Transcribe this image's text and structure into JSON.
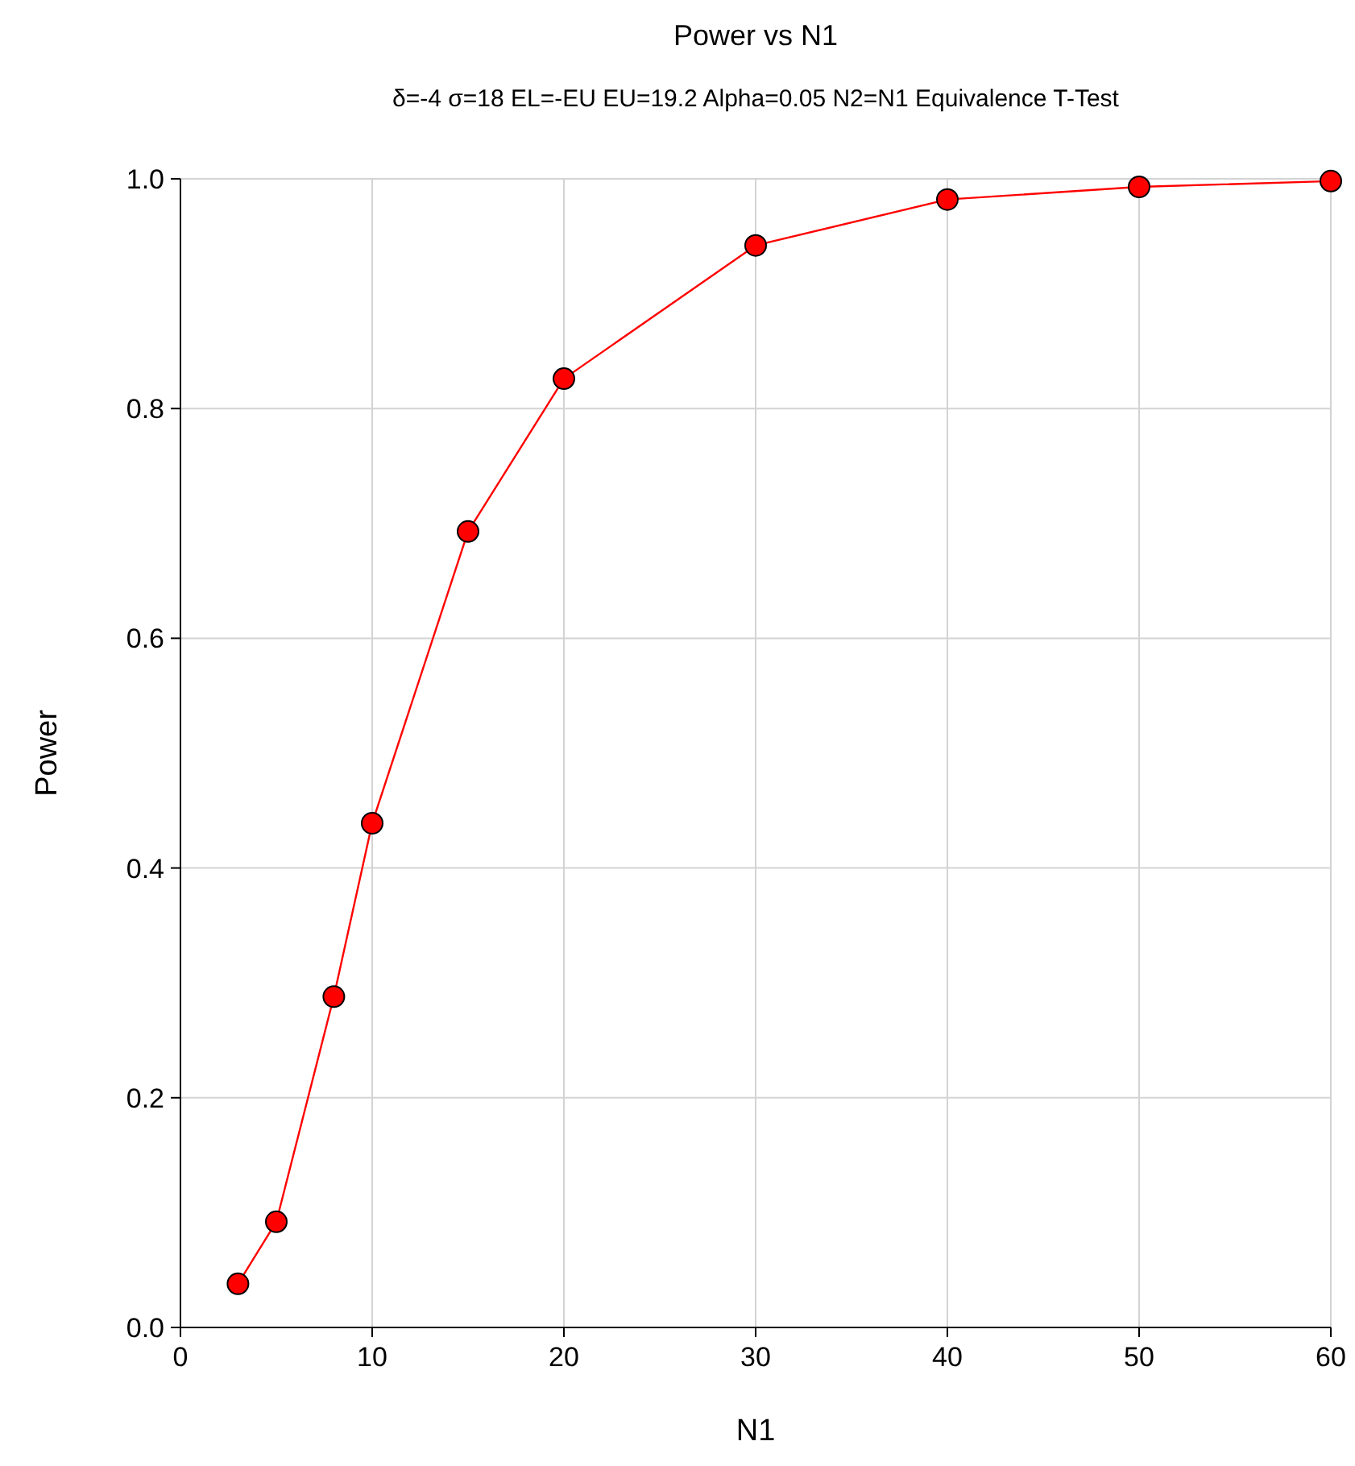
{
  "chart_data": {
    "type": "line",
    "title": "Power vs N1",
    "subtitle": "δ=-4 σ=18 EL=-EU EU=19.2 Alpha=0.05 N2=N1 Equivalence T-Test",
    "xlabel": "N1",
    "ylabel": "Power",
    "x": [
      3,
      5,
      8,
      10,
      15,
      20,
      30,
      40,
      50,
      60
    ],
    "series": [
      {
        "color": "#ff0000",
        "values": [
          0.038,
          0.092,
          0.288,
          0.439,
          0.693,
          0.826,
          0.942,
          0.982,
          0.993,
          0.998
        ]
      }
    ],
    "xlim": [
      0,
      60
    ],
    "xticks": [
      0,
      10,
      20,
      30,
      40,
      50,
      60
    ],
    "ylim": [
      0,
      1
    ],
    "yticks": [
      {
        "value": 0,
        "label": "0.0"
      },
      {
        "value": 0.2,
        "label": "0.2"
      },
      {
        "value": 0.4,
        "label": "0.4"
      },
      {
        "value": 0.6,
        "label": "0.6"
      },
      {
        "value": 0.8,
        "label": "0.8"
      },
      {
        "value": 1,
        "label": "1.0"
      }
    ],
    "grid": true,
    "marker": "circle",
    "line_style": "solid"
  }
}
